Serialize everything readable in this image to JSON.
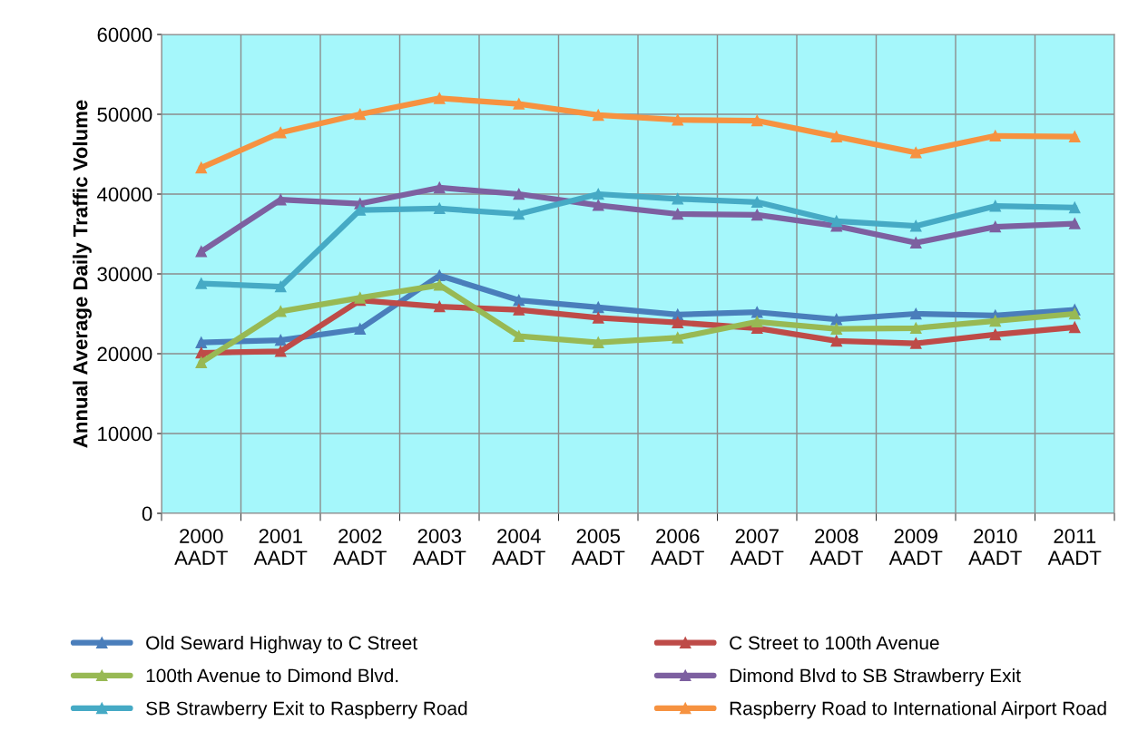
{
  "chart_data": {
    "type": "line",
    "ylabel": "Annual Average Daily Traffic Volume",
    "categories": [
      "2000\nAADT",
      "2001\nAADT",
      "2002\nAADT",
      "2003\nAADT",
      "2004\nAADT",
      "2005\nAADT",
      "2006\nAADT",
      "2007\nAADT",
      "2008\nAADT",
      "2009\nAADT",
      "2010\nAADT",
      "2011\nAADT"
    ],
    "ylim": [
      0,
      60000
    ],
    "yticks": [
      0,
      10000,
      20000,
      30000,
      40000,
      50000,
      60000
    ],
    "grid": true,
    "legend": "bottom",
    "marker": "triangle",
    "line_style": "solid",
    "series": [
      {
        "name": "Old Seward Highway to C Street",
        "color": "#4a7ebb",
        "values": [
          21400,
          21700,
          23100,
          29800,
          26700,
          25800,
          24900,
          25200,
          24300,
          25000,
          24800,
          25500
        ]
      },
      {
        "name": "C Street to 100th Avenue",
        "color": "#be4b48",
        "values": [
          20100,
          20300,
          26700,
          25900,
          25500,
          24500,
          23900,
          23200,
          21600,
          21300,
          22400,
          23300
        ]
      },
      {
        "name": "100th Avenue to Dimond Blvd.",
        "color": "#98b954",
        "values": [
          18900,
          25300,
          27000,
          28600,
          22200,
          21400,
          22000,
          24000,
          23100,
          23200,
          24100,
          25000
        ]
      },
      {
        "name": "Dimond Blvd to SB Strawberry Exit",
        "color": "#7d60a0",
        "values": [
          32800,
          39300,
          38800,
          40800,
          40000,
          38600,
          37500,
          37400,
          36000,
          33900,
          35900,
          36300
        ]
      },
      {
        "name": "SB Strawberry Exit to Raspberry Road",
        "color": "#46aac5",
        "values": [
          28800,
          28400,
          38000,
          38200,
          37500,
          40000,
          39400,
          39000,
          36600,
          36000,
          38500,
          38300
        ]
      },
      {
        "name": "Raspberry Road to International Airport Road",
        "color": "#f69240",
        "values": [
          43300,
          47700,
          50000,
          52000,
          51300,
          49900,
          49300,
          49200,
          47200,
          45200,
          47300,
          47200
        ]
      }
    ]
  }
}
